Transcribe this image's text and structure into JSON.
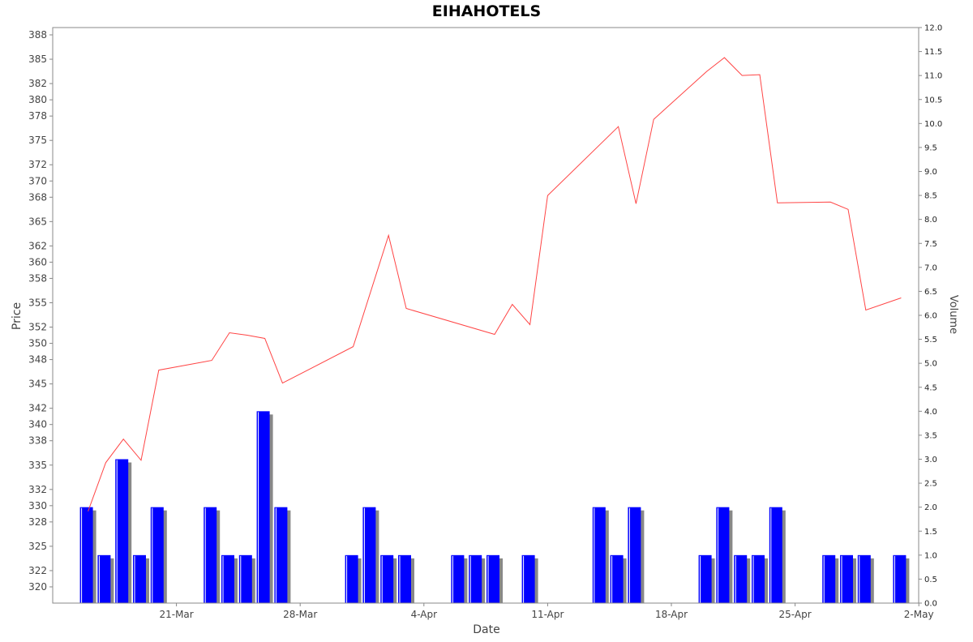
{
  "chart_data": {
    "type": "line",
    "title": "EIHAHOTELS",
    "xlabel": "Date",
    "ylabel": "Price",
    "y2label": "Volume",
    "x_ticks": [
      "21-Mar",
      "28-Mar",
      "4-Apr",
      "11-Apr",
      "18-Apr",
      "25-Apr",
      "2-May"
    ],
    "y_ticks": [
      "320",
      "322",
      "325",
      "328",
      "330",
      "332",
      "335",
      "338",
      "340",
      "342",
      "345",
      "348",
      "350",
      "352",
      "355",
      "358",
      "360",
      "362",
      "365",
      "368",
      "370",
      "372",
      "375",
      "378",
      "380",
      "382",
      "385",
      "388"
    ],
    "y2_ticks": [
      "0.0",
      "0.5",
      "1.0",
      "1.5",
      "2.0",
      "2.5",
      "3.0",
      "3.5",
      "4.0",
      "4.5",
      "5.0",
      "5.5",
      "6.0",
      "6.5",
      "7.0",
      "7.5",
      "8.0",
      "8.5",
      "9.0",
      "9.5",
      "10.0",
      "10.5",
      "11.0",
      "11.5",
      "12.0"
    ],
    "ylim": [
      318,
      388.9
    ],
    "y2lim": [
      0,
      12
    ],
    "grid": false,
    "series": [
      {
        "type": "line",
        "color": "#ff4444",
        "x": [
          "2022-03-16",
          "2022-03-17",
          "2022-03-18",
          "2022-03-19",
          "2022-03-20",
          "2022-03-23",
          "2022-03-24",
          "2022-03-25",
          "2022-03-26",
          "2022-03-27",
          "2022-03-31",
          "2022-04-02",
          "2022-04-03",
          "2022-04-08",
          "2022-04-09",
          "2022-04-10",
          "2022-04-11",
          "2022-04-15",
          "2022-04-16",
          "2022-04-17",
          "2022-04-20",
          "2022-04-21",
          "2022-04-22",
          "2022-04-23",
          "2022-04-24",
          "2022-04-27",
          "2022-04-28",
          "2022-04-29",
          "2022-05-01"
        ],
        "values": [
          329.3,
          335.3,
          338.2,
          335.6,
          346.7,
          347.9,
          351.3,
          351.0,
          350.6,
          345.1,
          349.6,
          363.3,
          354.3,
          351.1,
          354.8,
          352.3,
          368.2,
          376.7,
          367.2,
          377.6,
          383.5,
          385.2,
          383.0,
          383.1,
          367.3,
          367.4,
          366.5,
          354.1,
          355.6
        ]
      },
      {
        "type": "bar",
        "color": "#0000ff",
        "x": [
          "2022-03-16",
          "2022-03-17",
          "2022-03-18",
          "2022-03-19",
          "2022-03-20",
          "2022-03-23",
          "2022-03-24",
          "2022-03-25",
          "2022-03-26",
          "2022-03-27",
          "2022-03-31",
          "2022-04-01",
          "2022-04-02",
          "2022-04-03",
          "2022-04-06",
          "2022-04-07",
          "2022-04-08",
          "2022-04-10",
          "2022-04-14",
          "2022-04-15",
          "2022-04-16",
          "2022-04-20",
          "2022-04-21",
          "2022-04-22",
          "2022-04-23",
          "2022-04-24",
          "2022-04-27",
          "2022-04-28",
          "2022-04-29",
          "2022-05-01"
        ],
        "values": [
          2,
          1,
          3,
          1,
          2,
          2,
          1,
          1,
          4,
          2,
          1,
          2,
          1,
          1,
          1,
          1,
          1,
          1,
          2,
          1,
          2,
          1,
          2,
          1,
          1,
          2,
          1,
          1,
          1,
          1
        ]
      }
    ]
  }
}
